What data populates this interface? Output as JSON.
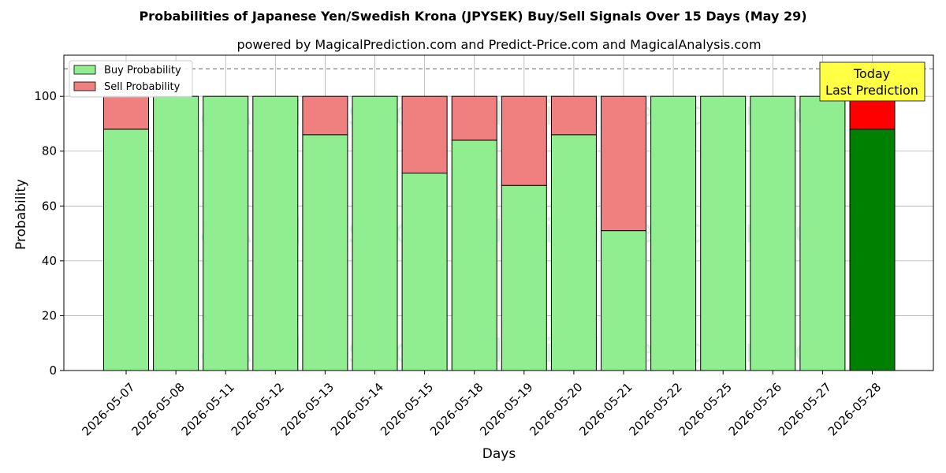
{
  "chart_data": {
    "type": "bar",
    "stacked": true,
    "title": "Probabilities of Japanese Yen/Swedish Krona (JPYSEK) Buy/Sell Signals Over 15 Days (May 29)",
    "subtitle": "powered by MagicalPrediction.com and Predict-Price.com and MagicalAnalysis.com",
    "xlabel": "Days",
    "ylabel": "Probability",
    "ylim": [
      0,
      115
    ],
    "yticks": [
      0,
      20,
      40,
      60,
      80,
      100
    ],
    "grid": true,
    "legend_position": "top-left",
    "reference_line": 110,
    "categories": [
      "2026-05-07",
      "2026-05-08",
      "2026-05-11",
      "2026-05-12",
      "2026-05-13",
      "2026-05-14",
      "2026-05-15",
      "2026-05-18",
      "2026-05-19",
      "2026-05-20",
      "2026-05-21",
      "2026-05-22",
      "2026-05-25",
      "2026-05-26",
      "2026-05-27",
      "2026-05-28"
    ],
    "series": [
      {
        "name": "Buy Probability",
        "values": [
          88,
          100,
          100,
          100,
          86,
          100,
          72,
          84,
          67.5,
          86,
          51,
          100,
          100,
          100,
          100,
          88
        ],
        "color": "#90ee90",
        "last_color": "#008000"
      },
      {
        "name": "Sell Probability",
        "values": [
          12,
          0,
          0,
          0,
          14,
          0,
          28,
          16,
          32.5,
          14,
          49,
          0,
          0,
          0,
          0,
          12
        ],
        "color": "#f08080",
        "last_color": "#ff0000"
      }
    ],
    "annotation": {
      "line1": "Today",
      "line2": "Last Prediction",
      "color": "#ffff44"
    },
    "watermarks": [
      "MagicalAnalysis.com",
      "MagicalPrediction.com"
    ]
  }
}
